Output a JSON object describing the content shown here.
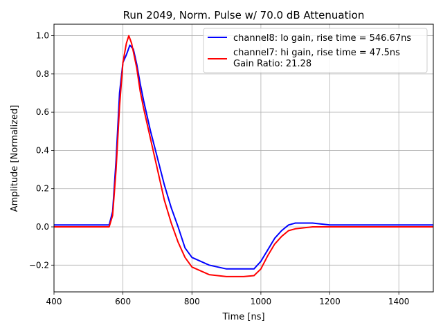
{
  "chart_data": {
    "type": "line",
    "title": "Run 2049, Norm. Pulse w/ 70.0 dB Attenuation",
    "xlabel": "Time [ns]",
    "ylabel": "Amplitude [Normalized]",
    "xlim": [
      400,
      1500
    ],
    "ylim": [
      -0.34,
      1.06
    ],
    "xticks": [
      400,
      600,
      800,
      1000,
      1200,
      1400
    ],
    "yticks": [
      -0.2,
      0.0,
      0.2,
      0.4,
      0.6,
      0.8,
      1.0
    ],
    "xtick_labels": [
      "400",
      "600",
      "800",
      "1000",
      "1200",
      "1400"
    ],
    "ytick_labels": [
      "−0.2",
      "0.0",
      "0.2",
      "0.4",
      "0.6",
      "0.8",
      "1.0"
    ],
    "grid": true,
    "legend_position": "top-right",
    "legend_extra": "Gain Ratio: 21.28",
    "series": [
      {
        "name": "channel8: lo gain, rise time = 546.67ns",
        "color": "#0000ff",
        "x": [
          400,
          560,
          570,
          580,
          590,
          600,
          610,
          620,
          630,
          640,
          650,
          660,
          680,
          700,
          720,
          740,
          760,
          780,
          800,
          850,
          900,
          950,
          980,
          1000,
          1020,
          1040,
          1060,
          1080,
          1100,
          1150,
          1200,
          1300,
          1400,
          1500
        ],
        "y": [
          0.01,
          0.01,
          0.08,
          0.35,
          0.7,
          0.86,
          0.9,
          0.95,
          0.93,
          0.85,
          0.75,
          0.66,
          0.5,
          0.36,
          0.22,
          0.1,
          0.0,
          -0.11,
          -0.16,
          -0.2,
          -0.22,
          -0.22,
          -0.22,
          -0.18,
          -0.12,
          -0.06,
          -0.02,
          0.01,
          0.02,
          0.02,
          0.01,
          0.01,
          0.01,
          0.01
        ]
      },
      {
        "name": "channel7: hi gain, rise time = 47.5ns",
        "color": "#ff0000",
        "x": [
          400,
          560,
          570,
          580,
          590,
          600,
          610,
          617,
          625,
          640,
          650,
          660,
          680,
          700,
          720,
          740,
          760,
          780,
          800,
          850,
          900,
          950,
          980,
          1000,
          1020,
          1040,
          1060,
          1080,
          1100,
          1150,
          1200,
          1300,
          1400,
          1500
        ],
        "y": [
          0.0,
          0.0,
          0.06,
          0.3,
          0.63,
          0.86,
          0.96,
          1.0,
          0.96,
          0.83,
          0.71,
          0.62,
          0.46,
          0.3,
          0.14,
          0.02,
          -0.08,
          -0.16,
          -0.21,
          -0.25,
          -0.26,
          -0.26,
          -0.255,
          -0.22,
          -0.15,
          -0.09,
          -0.05,
          -0.02,
          -0.01,
          0.0,
          0.0,
          0.0,
          0.0,
          0.0
        ]
      }
    ]
  }
}
